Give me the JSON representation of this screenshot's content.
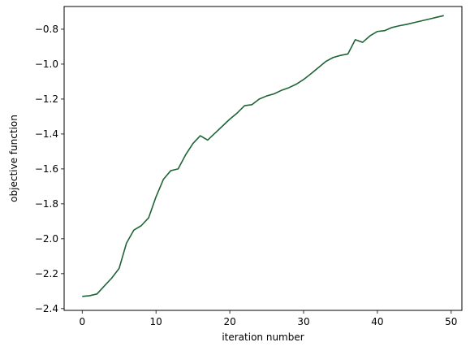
{
  "chart_data": {
    "type": "line",
    "title": "",
    "xlabel": "iteration number",
    "ylabel": "objective function",
    "xlim": [
      -2.45,
      51.45
    ],
    "ylim": [
      -2.41,
      -0.67
    ],
    "xticks": [
      0,
      10,
      20,
      30,
      40,
      50
    ],
    "yticks": [
      -2.4,
      -2.2,
      -2.0,
      -1.8,
      -1.6,
      -1.4,
      -1.2,
      -1.0,
      -0.8
    ],
    "xtick_labels": [
      "0",
      "10",
      "20",
      "30",
      "40",
      "50"
    ],
    "ytick_labels": [
      "−2.4",
      "−2.2",
      "−2.0",
      "−1.8",
      "−1.6",
      "−1.4",
      "−1.2",
      "−1.0",
      "−0.8"
    ],
    "grid": false,
    "color": "#1f6437",
    "series": [
      {
        "x": [
          0,
          1,
          2,
          3,
          4,
          5,
          6,
          7,
          8,
          9,
          10,
          11,
          12,
          13,
          14,
          15,
          16,
          17,
          18,
          19,
          20,
          21,
          22,
          23,
          24,
          25,
          26,
          27,
          28,
          29,
          30,
          31,
          32,
          33,
          34,
          35,
          36,
          37,
          38,
          39,
          40,
          41,
          42,
          43,
          44,
          45,
          46,
          47,
          48,
          49
        ],
        "y": [
          -2.33,
          -2.326,
          -2.316,
          -2.27,
          -2.225,
          -2.17,
          -2.025,
          -1.95,
          -1.925,
          -1.88,
          -1.76,
          -1.66,
          -1.61,
          -1.6,
          -1.52,
          -1.455,
          -1.41,
          -1.435,
          -1.395,
          -1.355,
          -1.315,
          -1.28,
          -1.238,
          -1.232,
          -1.2,
          -1.182,
          -1.17,
          -1.15,
          -1.135,
          -1.115,
          -1.088,
          -1.055,
          -1.02,
          -0.985,
          -0.962,
          -0.95,
          -0.942,
          -0.86,
          -0.875,
          -0.838,
          -0.813,
          -0.808,
          -0.79,
          -0.78,
          -0.772,
          -0.762,
          -0.752,
          -0.742,
          -0.732,
          -0.722
        ]
      }
    ]
  }
}
